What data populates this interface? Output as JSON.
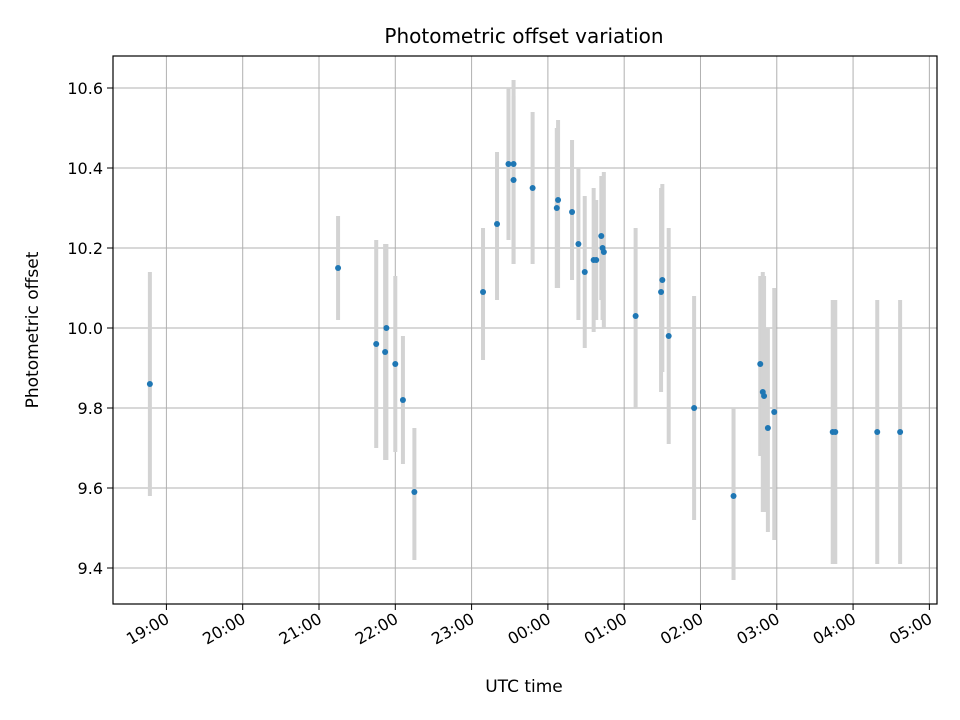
{
  "chart_data": {
    "type": "scatter",
    "title": "Photometric offset variation",
    "xlabel": "UTC time",
    "ylabel": "Photometric offset",
    "grid": true,
    "legend": "none",
    "x_ticks": [
      "19:00",
      "20:00",
      "21:00",
      "22:00",
      "23:00",
      "00:00",
      "01:00",
      "02:00",
      "03:00",
      "04:00",
      "05:00"
    ],
    "x_tick_hours": [
      0,
      1,
      2,
      3,
      4,
      5,
      6,
      7,
      8,
      9,
      10
    ],
    "x_tick_start": "19:00",
    "xlim_hours": [
      -0.7,
      10.1
    ],
    "ylim": [
      9.31,
      10.68
    ],
    "y_ticks": [
      9.4,
      9.6,
      9.8,
      10.0,
      10.2,
      10.4,
      10.6
    ],
    "marker_color": "#1f77b4",
    "errorbar_color": "#d3d3d3",
    "points": [
      {
        "t": "18:47",
        "y": 9.86,
        "lo": 9.58,
        "hi": 10.14
      },
      {
        "t": "21:15",
        "y": 10.15,
        "lo": 10.02,
        "hi": 10.28
      },
      {
        "t": "21:45",
        "y": 9.96,
        "lo": 9.7,
        "hi": 10.22
      },
      {
        "t": "21:52",
        "y": 9.94,
        "lo": 9.67,
        "hi": 10.21
      },
      {
        "t": "21:53",
        "y": 10.0,
        "lo": 9.67,
        "hi": 10.21
      },
      {
        "t": "22:00",
        "y": 9.91,
        "lo": 9.69,
        "hi": 10.13
      },
      {
        "t": "22:06",
        "y": 9.82,
        "lo": 9.66,
        "hi": 9.98
      },
      {
        "t": "22:15",
        "y": 9.59,
        "lo": 9.42,
        "hi": 9.75
      },
      {
        "t": "23:09",
        "y": 10.09,
        "lo": 9.92,
        "hi": 10.25
      },
      {
        "t": "23:20",
        "y": 10.26,
        "lo": 10.07,
        "hi": 10.44
      },
      {
        "t": "23:29",
        "y": 10.41,
        "lo": 10.22,
        "hi": 10.6
      },
      {
        "t": "23:33",
        "y": 10.41,
        "lo": 10.16,
        "hi": 10.62
      },
      {
        "t": "23:33",
        "y": 10.37,
        "lo": 10.16,
        "hi": 10.58
      },
      {
        "t": "23:48",
        "y": 10.35,
        "lo": 10.16,
        "hi": 10.54
      },
      {
        "t": "00:07",
        "y": 10.3,
        "lo": 10.1,
        "hi": 10.5
      },
      {
        "t": "00:08",
        "y": 10.32,
        "lo": 10.1,
        "hi": 10.52
      },
      {
        "t": "00:19",
        "y": 10.29,
        "lo": 10.12,
        "hi": 10.47
      },
      {
        "t": "00:24",
        "y": 10.21,
        "lo": 10.02,
        "hi": 10.4
      },
      {
        "t": "00:29",
        "y": 10.14,
        "lo": 9.95,
        "hi": 10.33
      },
      {
        "t": "00:36",
        "y": 10.17,
        "lo": 9.99,
        "hi": 10.35
      },
      {
        "t": "00:38",
        "y": 10.17,
        "lo": 10.02,
        "hi": 10.32
      },
      {
        "t": "00:42",
        "y": 10.23,
        "lo": 10.07,
        "hi": 10.38
      },
      {
        "t": "00:43",
        "y": 10.2,
        "lo": 10.02,
        "hi": 10.38
      },
      {
        "t": "00:44",
        "y": 10.19,
        "lo": 10.0,
        "hi": 10.39
      },
      {
        "t": "01:09",
        "y": 10.03,
        "lo": 9.8,
        "hi": 10.25
      },
      {
        "t": "01:29",
        "y": 10.09,
        "lo": 9.84,
        "hi": 10.35
      },
      {
        "t": "01:30",
        "y": 10.12,
        "lo": 9.89,
        "hi": 10.36
      },
      {
        "t": "01:35",
        "y": 9.98,
        "lo": 9.71,
        "hi": 10.25
      },
      {
        "t": "01:55",
        "y": 9.8,
        "lo": 9.52,
        "hi": 10.08
      },
      {
        "t": "02:26",
        "y": 9.58,
        "lo": 9.37,
        "hi": 9.8
      },
      {
        "t": "02:47",
        "y": 9.91,
        "lo": 9.68,
        "hi": 10.13
      },
      {
        "t": "02:49",
        "y": 9.84,
        "lo": 9.54,
        "hi": 10.14
      },
      {
        "t": "02:50",
        "y": 9.83,
        "lo": 9.54,
        "hi": 10.13
      },
      {
        "t": "02:53",
        "y": 9.75,
        "lo": 9.49,
        "hi": 10.0
      },
      {
        "t": "02:58",
        "y": 9.79,
        "lo": 9.47,
        "hi": 10.1
      },
      {
        "t": "03:44",
        "y": 9.74,
        "lo": 9.41,
        "hi": 10.07
      },
      {
        "t": "03:46",
        "y": 9.74,
        "lo": 9.41,
        "hi": 10.07
      },
      {
        "t": "04:19",
        "y": 9.74,
        "lo": 9.41,
        "hi": 10.07
      },
      {
        "t": "04:37",
        "y": 9.74,
        "lo": 9.41,
        "hi": 10.07
      }
    ]
  }
}
